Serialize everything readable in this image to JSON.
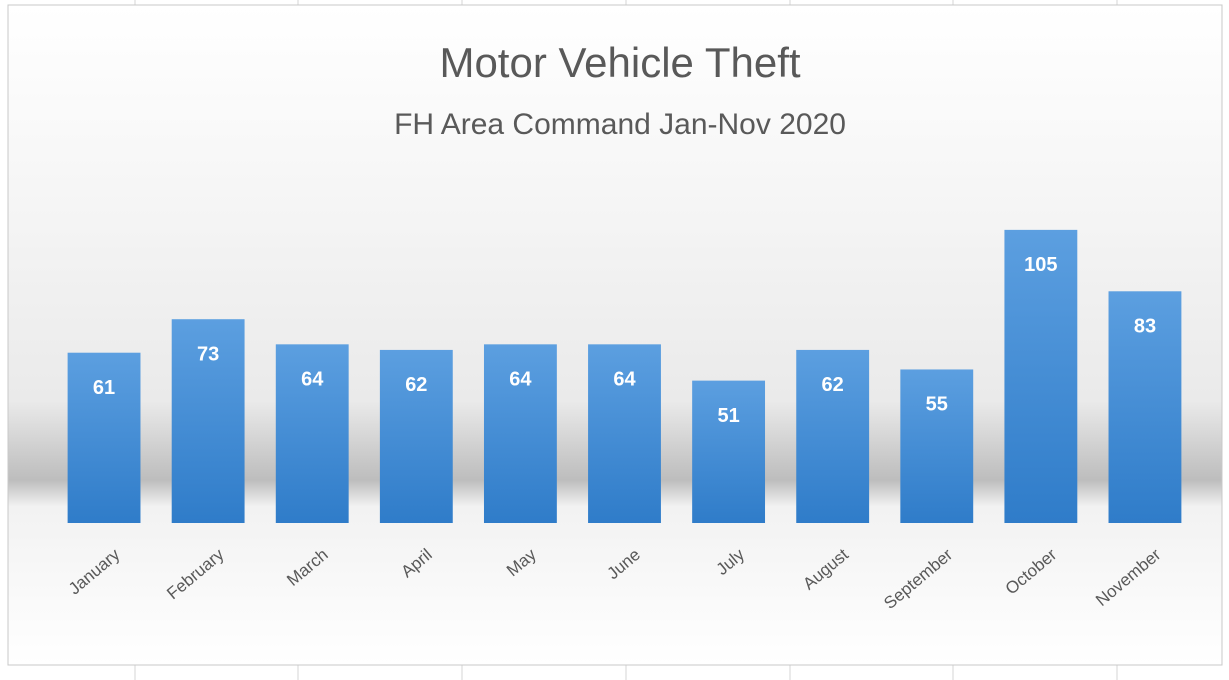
{
  "chart_data": {
    "type": "bar",
    "title": "Motor Vehicle Theft",
    "subtitle": "FH Area Command Jan-Nov 2020",
    "categories": [
      "January",
      "February",
      "March",
      "April",
      "May",
      "June",
      "July",
      "August",
      "September",
      "October",
      "November"
    ],
    "values": [
      61,
      73,
      64,
      62,
      64,
      64,
      51,
      62,
      55,
      105,
      83
    ],
    "color": "#4a8fd6",
    "ylim": [
      0,
      120
    ],
    "grid": false
  }
}
